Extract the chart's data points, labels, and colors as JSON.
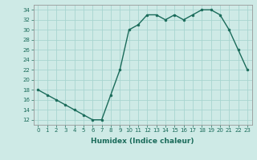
{
  "x": [
    0,
    1,
    2,
    3,
    4,
    5,
    6,
    7,
    8,
    9,
    10,
    11,
    12,
    13,
    14,
    15,
    16,
    17,
    18,
    19,
    20,
    21,
    22,
    23
  ],
  "y": [
    18,
    17,
    16,
    15,
    14,
    13,
    12,
    12,
    17,
    22,
    30,
    31,
    33,
    33,
    32,
    33,
    32,
    33,
    34,
    34,
    33,
    30,
    26,
    22
  ],
  "xlabel": "Humidex (Indice chaleur)",
  "xlim": [
    -0.5,
    23.5
  ],
  "ylim": [
    11,
    35
  ],
  "yticks": [
    12,
    14,
    16,
    18,
    20,
    22,
    24,
    26,
    28,
    30,
    32,
    34
  ],
  "xticks": [
    0,
    1,
    2,
    3,
    4,
    5,
    6,
    7,
    8,
    9,
    10,
    11,
    12,
    13,
    14,
    15,
    16,
    17,
    18,
    19,
    20,
    21,
    22,
    23
  ],
  "line_color": "#1a6b5a",
  "marker_color": "#1a6b5a",
  "bg_color": "#ceeae6",
  "grid_color": "#a8d5d0",
  "axis_color": "#999999",
  "tick_label_fontsize": 5.0,
  "xlabel_fontsize": 6.5
}
